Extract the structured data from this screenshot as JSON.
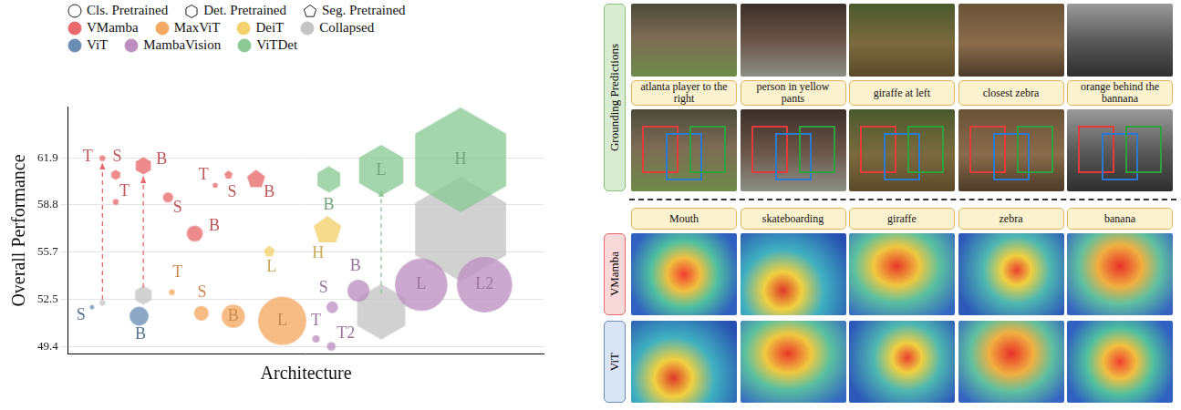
{
  "chart_data": {
    "type": "bubble",
    "y_label": "Overall Performance",
    "x_label": "Architecture",
    "xlim": [
      0,
      100
    ],
    "xticks": [],
    "ylim": [
      48.9,
      65.3
    ],
    "yticks": [
      49.4,
      52.5,
      55.7,
      58.8,
      61.9
    ],
    "grid": true,
    "tick_labels": "y",
    "legend": "top",
    "marker_legend": [
      {
        "name": "Cls. Pretrained",
        "marker": "circle"
      },
      {
        "name": "Det. Pretrained",
        "marker": "hexagon"
      },
      {
        "name": "Seg. Pretrained",
        "marker": "pentagon"
      }
    ],
    "series": [
      {
        "name": "VMamba",
        "color": "#e8696b",
        "points": [
          {
            "x": 7.2,
            "y": 61.9,
            "size": 4,
            "label": "T",
            "marker": "circle"
          },
          {
            "x": 10.0,
            "y": 60.8,
            "size": 7,
            "label": "S",
            "marker": "hexagon"
          },
          {
            "x": 15.8,
            "y": 61.4,
            "size": 12,
            "label": "B",
            "marker": "hexagon"
          },
          {
            "x": 10.0,
            "y": 59.0,
            "size": 4,
            "label": "T",
            "marker": "circle"
          },
          {
            "x": 21.0,
            "y": 59.3,
            "size": 7,
            "label": "S",
            "marker": "circle"
          },
          {
            "x": 26.6,
            "y": 56.9,
            "size": 11,
            "label": "B",
            "marker": "circle"
          },
          {
            "x": 30.9,
            "y": 60.1,
            "size": 4,
            "label": "T",
            "marker": "pentagon"
          },
          {
            "x": 33.7,
            "y": 60.8,
            "size": 6,
            "label": "S",
            "marker": "pentagon"
          },
          {
            "x": 39.5,
            "y": 60.5,
            "size": 13,
            "label": "B",
            "marker": "pentagon"
          }
        ]
      },
      {
        "name": "MaxViT",
        "color": "#f5a862",
        "points": [
          {
            "x": 21.8,
            "y": 53.0,
            "size": 4,
            "label": "T",
            "marker": "circle"
          },
          {
            "x": 28.0,
            "y": 51.6,
            "size": 10,
            "label": "S",
            "marker": "circle"
          },
          {
            "x": 34.7,
            "y": 51.4,
            "size": 16,
            "label": "B",
            "marker": "circle"
          },
          {
            "x": 45.0,
            "y": 51.1,
            "size": 33,
            "label": "L",
            "marker": "circle"
          }
        ]
      },
      {
        "name": "DeiT",
        "color": "#f3d16d",
        "points": [
          {
            "x": 42.3,
            "y": 55.7,
            "size": 8,
            "label": "L",
            "marker": "pentagon"
          },
          {
            "x": 54.5,
            "y": 57.1,
            "size": 20,
            "label": "H",
            "marker": "pentagon"
          }
        ]
      },
      {
        "name": "Collapsed",
        "color": "#c4c4c4",
        "points": [
          {
            "x": 7.2,
            "y": 52.3,
            "size": 4,
            "marker": "circle"
          },
          {
            "x": 15.8,
            "y": 52.8,
            "size": 13,
            "marker": "hexagon"
          },
          {
            "x": 65.8,
            "y": 51.7,
            "size": 38,
            "marker": "hexagon"
          },
          {
            "x": 82.5,
            "y": 57.2,
            "size": 72,
            "marker": "hexagon"
          }
        ]
      },
      {
        "name": "ViT",
        "color": "#6b8db5",
        "points": [
          {
            "x": 5.0,
            "y": 52.0,
            "size": 3,
            "label": "S",
            "marker": "circle"
          },
          {
            "x": 14.9,
            "y": 51.4,
            "size": 13,
            "label": "B",
            "marker": "circle"
          }
        ]
      },
      {
        "name": "MambaVision",
        "color": "#bd8fc0",
        "points": [
          {
            "x": 52.1,
            "y": 49.9,
            "size": 5,
            "label": "T",
            "marker": "circle"
          },
          {
            "x": 55.3,
            "y": 49.4,
            "size": 6,
            "label": "T2",
            "marker": "circle"
          },
          {
            "x": 55.5,
            "y": 52.0,
            "size": 8,
            "label": "S",
            "marker": "circle"
          },
          {
            "x": 61.0,
            "y": 53.1,
            "size": 15,
            "label": "B",
            "marker": "circle"
          },
          {
            "x": 74.2,
            "y": 53.5,
            "size": 36,
            "label": "L",
            "marker": "circle"
          },
          {
            "x": 87.5,
            "y": 53.5,
            "size": 38,
            "label": "L2",
            "marker": "circle"
          }
        ]
      },
      {
        "name": "ViTDet",
        "color": "#8cc995",
        "points": [
          {
            "x": 54.8,
            "y": 60.5,
            "size": 18,
            "label": "B",
            "marker": "hexagon"
          },
          {
            "x": 65.8,
            "y": 61.1,
            "size": 35,
            "label": "L",
            "marker": "hexagon"
          },
          {
            "x": 82.5,
            "y": 61.8,
            "size": 72,
            "label": "H",
            "marker": "hexagon"
          }
        ]
      }
    ],
    "arrows": [
      {
        "from": [
          7.2,
          52.5
        ],
        "to": [
          7.2,
          61.6
        ],
        "color": "#e8696b"
      },
      {
        "from": [
          15.8,
          53.3
        ],
        "to": [
          15.8,
          60.7
        ],
        "color": "#e8696b"
      },
      {
        "from": [
          65.8,
          52.9
        ],
        "to": [
          65.8,
          59.8
        ],
        "color": "#8cc995"
      }
    ]
  },
  "image_panel": {
    "grounding_label": "Grounding Predictions",
    "grounding_captions": [
      "atlanta player to the right",
      "person in yellow pants",
      "giraffe at left",
      "closest zebra",
      "orange behind the bannana"
    ],
    "class_captions": [
      "Mouth",
      "skateboarding",
      "giraffe",
      "zebra",
      "banana"
    ],
    "model_rows": [
      {
        "name": "VMamba",
        "color": "#e8696b"
      },
      {
        "name": "ViT",
        "color": "#6b8db5"
      }
    ]
  }
}
